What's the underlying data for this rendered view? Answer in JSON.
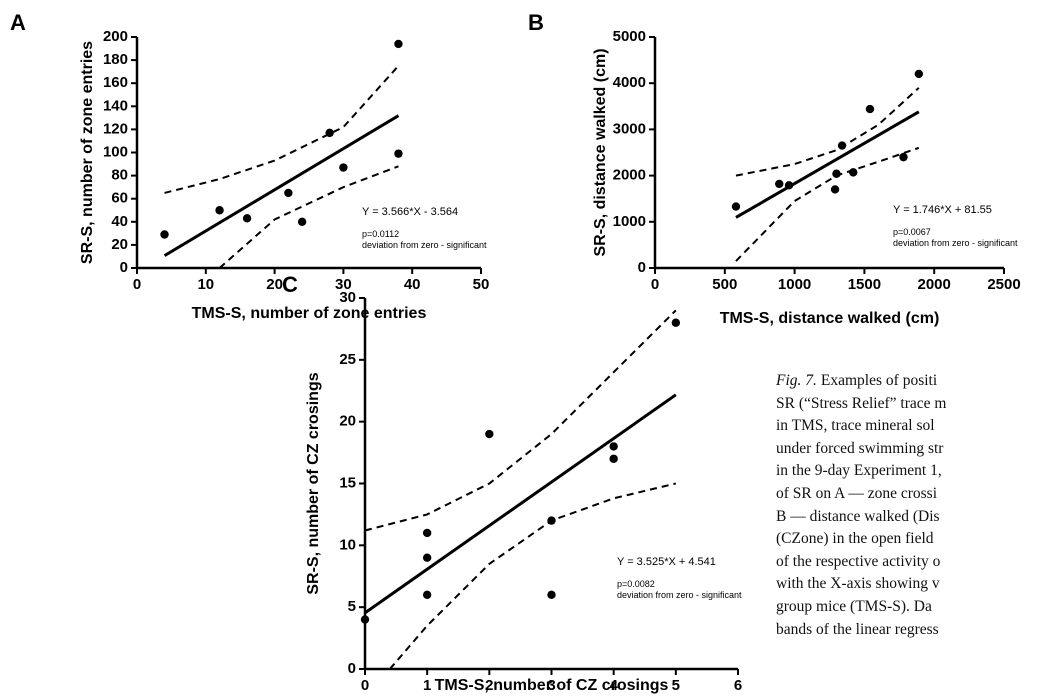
{
  "chart_data": [
    {
      "type": "scatter",
      "panel": "A",
      "x_label": "TMS-S, number of zone entries",
      "y_label": "SR-S, number of zone entries",
      "xlim": [
        0,
        50
      ],
      "xticks": [
        0,
        10,
        20,
        30,
        40,
        50
      ],
      "ylim": [
        0,
        200
      ],
      "yticks": [
        0,
        20,
        40,
        60,
        80,
        100,
        120,
        140,
        160,
        180,
        200
      ],
      "color": "#000000",
      "points": {
        "x": [
          4,
          12,
          16,
          22,
          24,
          28,
          30,
          38,
          38
        ],
        "y": [
          29,
          50,
          43,
          65,
          40,
          117,
          87,
          194,
          99
        ]
      },
      "fit": {
        "x": [
          4,
          38
        ],
        "y": [
          10.7,
          131.9
        ]
      },
      "upper_band": {
        "x": [
          4,
          12,
          20,
          30,
          38
        ],
        "y": [
          65,
          77,
          93,
          122,
          175
        ]
      },
      "lower_band": {
        "x": [
          12,
          20,
          30,
          38
        ],
        "y": [
          0,
          42,
          70,
          88
        ]
      },
      "annotations": [
        "Y = 3.566*X - 3.564",
        "p=0.0112",
        "deviation from zero - significant"
      ]
    },
    {
      "type": "scatter",
      "panel": "B",
      "x_label": "TMS-S, distance walked (cm)",
      "y_label": "SR-S, distance walked (cm)",
      "xlim": [
        0,
        2500
      ],
      "xticks": [
        0,
        500,
        1000,
        1500,
        2000,
        2500
      ],
      "ylim": [
        0,
        5000
      ],
      "yticks": [
        0,
        1000,
        2000,
        3000,
        4000,
        5000
      ],
      "color": "#000000",
      "points": {
        "x": [
          580,
          890,
          960,
          1290,
          1300,
          1340,
          1420,
          1540,
          1780,
          1890
        ],
        "y": [
          1330,
          1820,
          1790,
          1700,
          2040,
          2650,
          2070,
          3440,
          2400,
          4200
        ]
      },
      "fit": {
        "x": [
          580,
          1890
        ],
        "y": [
          1094,
          3381
        ]
      },
      "upper_band": {
        "x": [
          580,
          1000,
          1300,
          1600,
          1890
        ],
        "y": [
          2000,
          2250,
          2550,
          3100,
          3900
        ]
      },
      "lower_band": {
        "x": [
          580,
          1000,
          1300,
          1600,
          1890
        ],
        "y": [
          150,
          1450,
          2000,
          2300,
          2600
        ]
      },
      "annotations": [
        "Y = 1.746*X + 81.55",
        "p=0.0067",
        "deviation from zero - significant"
      ]
    },
    {
      "type": "scatter",
      "panel": "C",
      "x_label": "TMS-S, number of CZ crosings",
      "y_label": "SR-S, number of CZ crosings",
      "xlim": [
        0,
        6
      ],
      "xticks": [
        0,
        1,
        2,
        3,
        4,
        5,
        6
      ],
      "ylim": [
        0,
        30
      ],
      "yticks": [
        0,
        5,
        10,
        15,
        20,
        25,
        30
      ],
      "color": "#000000",
      "points": {
        "x": [
          0,
          1,
          1,
          1,
          2,
          3,
          3,
          4,
          4,
          5
        ],
        "y": [
          4,
          11,
          9,
          6,
          19,
          12,
          6,
          18,
          17,
          28
        ]
      },
      "fit": {
        "x": [
          0,
          5
        ],
        "y": [
          4.54,
          22.17
        ]
      },
      "upper_band": {
        "x": [
          0,
          1,
          2,
          3,
          4,
          5
        ],
        "y": [
          11.2,
          12.5,
          15,
          19,
          24,
          29
        ]
      },
      "lower_band": {
        "x": [
          0.4,
          1,
          2,
          3,
          4,
          5
        ],
        "y": [
          0,
          3.5,
          8.5,
          12,
          13.8,
          15
        ]
      },
      "annotations": [
        "Y = 3.525*X + 4.541",
        "p=0.0082",
        "deviation from zero - significant"
      ]
    }
  ],
  "caption": {
    "label": "Fig. 7.",
    "lines": [
      "Examples of positi",
      "SR (“Stress Relief” trace m",
      "in TMS, trace mineral sol",
      "under forced swimming str",
      "in the 9-day Experiment 1,",
      "of SR on A — zone crossi",
      "B — distance walked (Dis",
      "(CZone) in the open field",
      "of the respective activity o",
      "with the X-axis showing v",
      "group mice (TMS-S). Da",
      "bands of the linear regress"
    ]
  }
}
